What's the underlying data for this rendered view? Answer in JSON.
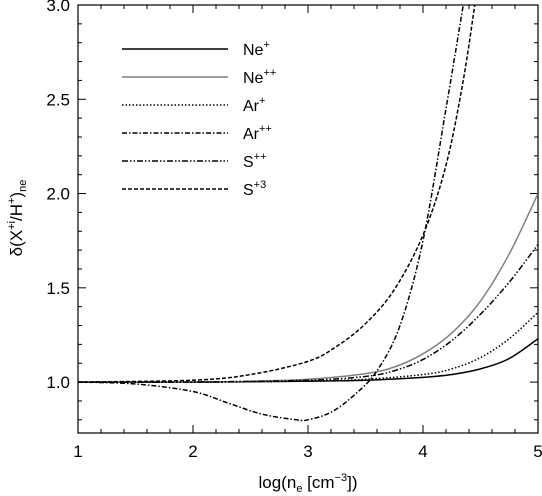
{
  "chart_data": {
    "type": "line",
    "title": "",
    "xlabel": "log(n",
    "xlabel_sub": "e",
    "xlabel_rest": " [cm",
    "xlabel_sup": "−3",
    "xlabel_end": "])",
    "ylabel": "δ(X",
    "ylabel_sup1": "+i",
    "ylabel_mid": "/H",
    "ylabel_sup2": "+",
    "ylabel_end": ")",
    "ylabel_sub": "ne",
    "xlim": [
      1,
      5
    ],
    "ylim": [
      0.73,
      3.0
    ],
    "xticks": [
      "1",
      "2",
      "3",
      "4",
      "5"
    ],
    "yticks": [
      "1.0",
      "1.5",
      "2.0",
      "2.5",
      "3.0"
    ],
    "grid": false,
    "legend_placement": "top-left",
    "series": [
      {
        "name": "Ne+",
        "name_base": "Ne",
        "name_sup": "+",
        "color": "#000000",
        "dash": "",
        "x": [
          1.0,
          2.0,
          3.0,
          3.5,
          4.0,
          4.25,
          4.5,
          4.75,
          5.0
        ],
        "y": [
          1.0,
          1.0,
          1.005,
          1.01,
          1.025,
          1.04,
          1.07,
          1.125,
          1.23
        ]
      },
      {
        "name": "Ne++",
        "name_base": "Ne",
        "name_sup": "++",
        "color": "#808080",
        "dash": "",
        "x": [
          1.0,
          2.0,
          2.5,
          3.0,
          3.5,
          3.75,
          4.0,
          4.25,
          4.5,
          4.75,
          5.0
        ],
        "y": [
          1.0,
          1.0,
          1.005,
          1.015,
          1.045,
          1.08,
          1.15,
          1.26,
          1.43,
          1.68,
          2.0
        ]
      },
      {
        "name": "Ar+",
        "name_base": "Ar",
        "name_sup": "+",
        "color": "#000000",
        "dash": "1.5,2",
        "x": [
          1.0,
          2.0,
          3.0,
          3.5,
          4.0,
          4.25,
          4.5,
          4.75,
          5.0
        ],
        "y": [
          1.0,
          1.0,
          1.005,
          1.015,
          1.04,
          1.07,
          1.13,
          1.23,
          1.37
        ]
      },
      {
        "name": "Ar++",
        "name_base": "Ar",
        "name_sup": "++",
        "color": "#000000",
        "dash": "5,2,1.5,2",
        "x": [
          1.0,
          1.5,
          2.0,
          2.3,
          2.6,
          2.9,
          3.0,
          3.2,
          3.4,
          3.6,
          3.8,
          4.0,
          4.2,
          4.35
        ],
        "y": [
          1.0,
          0.99,
          0.95,
          0.89,
          0.83,
          0.8,
          0.8,
          0.84,
          0.93,
          1.06,
          1.3,
          1.75,
          2.45,
          3.0
        ]
      },
      {
        "name": "S++",
        "name_base": "S",
        "name_sup": "++",
        "color": "#000000",
        "dash": "6,2,1.5,2,1.5,2",
        "x": [
          1.0,
          2.0,
          3.0,
          3.5,
          3.75,
          4.0,
          4.25,
          4.5,
          4.75,
          5.0
        ],
        "y": [
          1.0,
          1.0,
          1.01,
          1.03,
          1.06,
          1.12,
          1.22,
          1.36,
          1.53,
          1.73
        ]
      },
      {
        "name": "S+3",
        "name_base": "S",
        "name_sup": "+3",
        "color": "#000000",
        "dash": "4,2",
        "x": [
          1.0,
          2.0,
          2.5,
          3.0,
          3.25,
          3.5,
          3.75,
          4.0,
          4.2,
          4.35,
          4.45
        ],
        "y": [
          1.0,
          1.01,
          1.04,
          1.11,
          1.19,
          1.31,
          1.49,
          1.78,
          2.15,
          2.6,
          3.0
        ]
      }
    ]
  }
}
